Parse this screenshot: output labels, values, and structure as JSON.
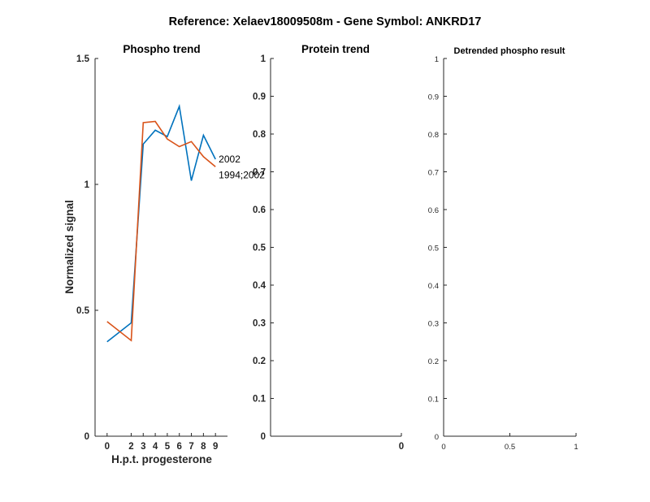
{
  "suptitle": "Reference:  Xelaev18009508m - Gene Symbol:  ANKRD17",
  "chart_data": [
    {
      "type": "line",
      "title": "Phospho trend",
      "xlabel": "H.p.t. progesterone",
      "ylabel": "Normalized signal",
      "categories": [
        "0",
        "2",
        "3",
        "4",
        "5",
        "6",
        "7",
        "8",
        "9"
      ],
      "xlim": [
        -1,
        10
      ],
      "ylim": [
        0,
        1.5
      ],
      "yticks": [
        "0",
        "0.5",
        "1",
        "1.5"
      ],
      "grid": false,
      "series": [
        {
          "name": "2002",
          "color": "#0072BD",
          "values": [
            0.375,
            0.45,
            1.16,
            1.215,
            1.19,
            1.31,
            1.015,
            1.195,
            1.1
          ]
        },
        {
          "name": "1994;2002",
          "color": "#D95319",
          "values": [
            0.455,
            0.38,
            1.245,
            1.25,
            1.18,
            1.15,
            1.17,
            1.11,
            1.07
          ]
        }
      ]
    },
    {
      "type": "line",
      "title": "Protein trend",
      "xlabel": "",
      "ylabel": "",
      "xticks": [
        "0"
      ],
      "ylim": [
        0,
        1
      ],
      "yticks": [
        "0",
        "0.1",
        "0.2",
        "0.3",
        "0.4",
        "0.5",
        "0.6",
        "0.7",
        "0.8",
        "0.9",
        "1"
      ],
      "series": []
    },
    {
      "type": "line",
      "title": "Detrended phospho result",
      "xlabel": "",
      "ylabel": "",
      "xlim": [
        0,
        1
      ],
      "xticks": [
        "0",
        "0.5",
        "1"
      ],
      "ylim": [
        0,
        1
      ],
      "yticks": [
        "0",
        "0.1",
        "0.2",
        "0.3",
        "0.4",
        "0.5",
        "0.6",
        "0.7",
        "0.8",
        "0.9",
        "1"
      ],
      "series": []
    }
  ]
}
